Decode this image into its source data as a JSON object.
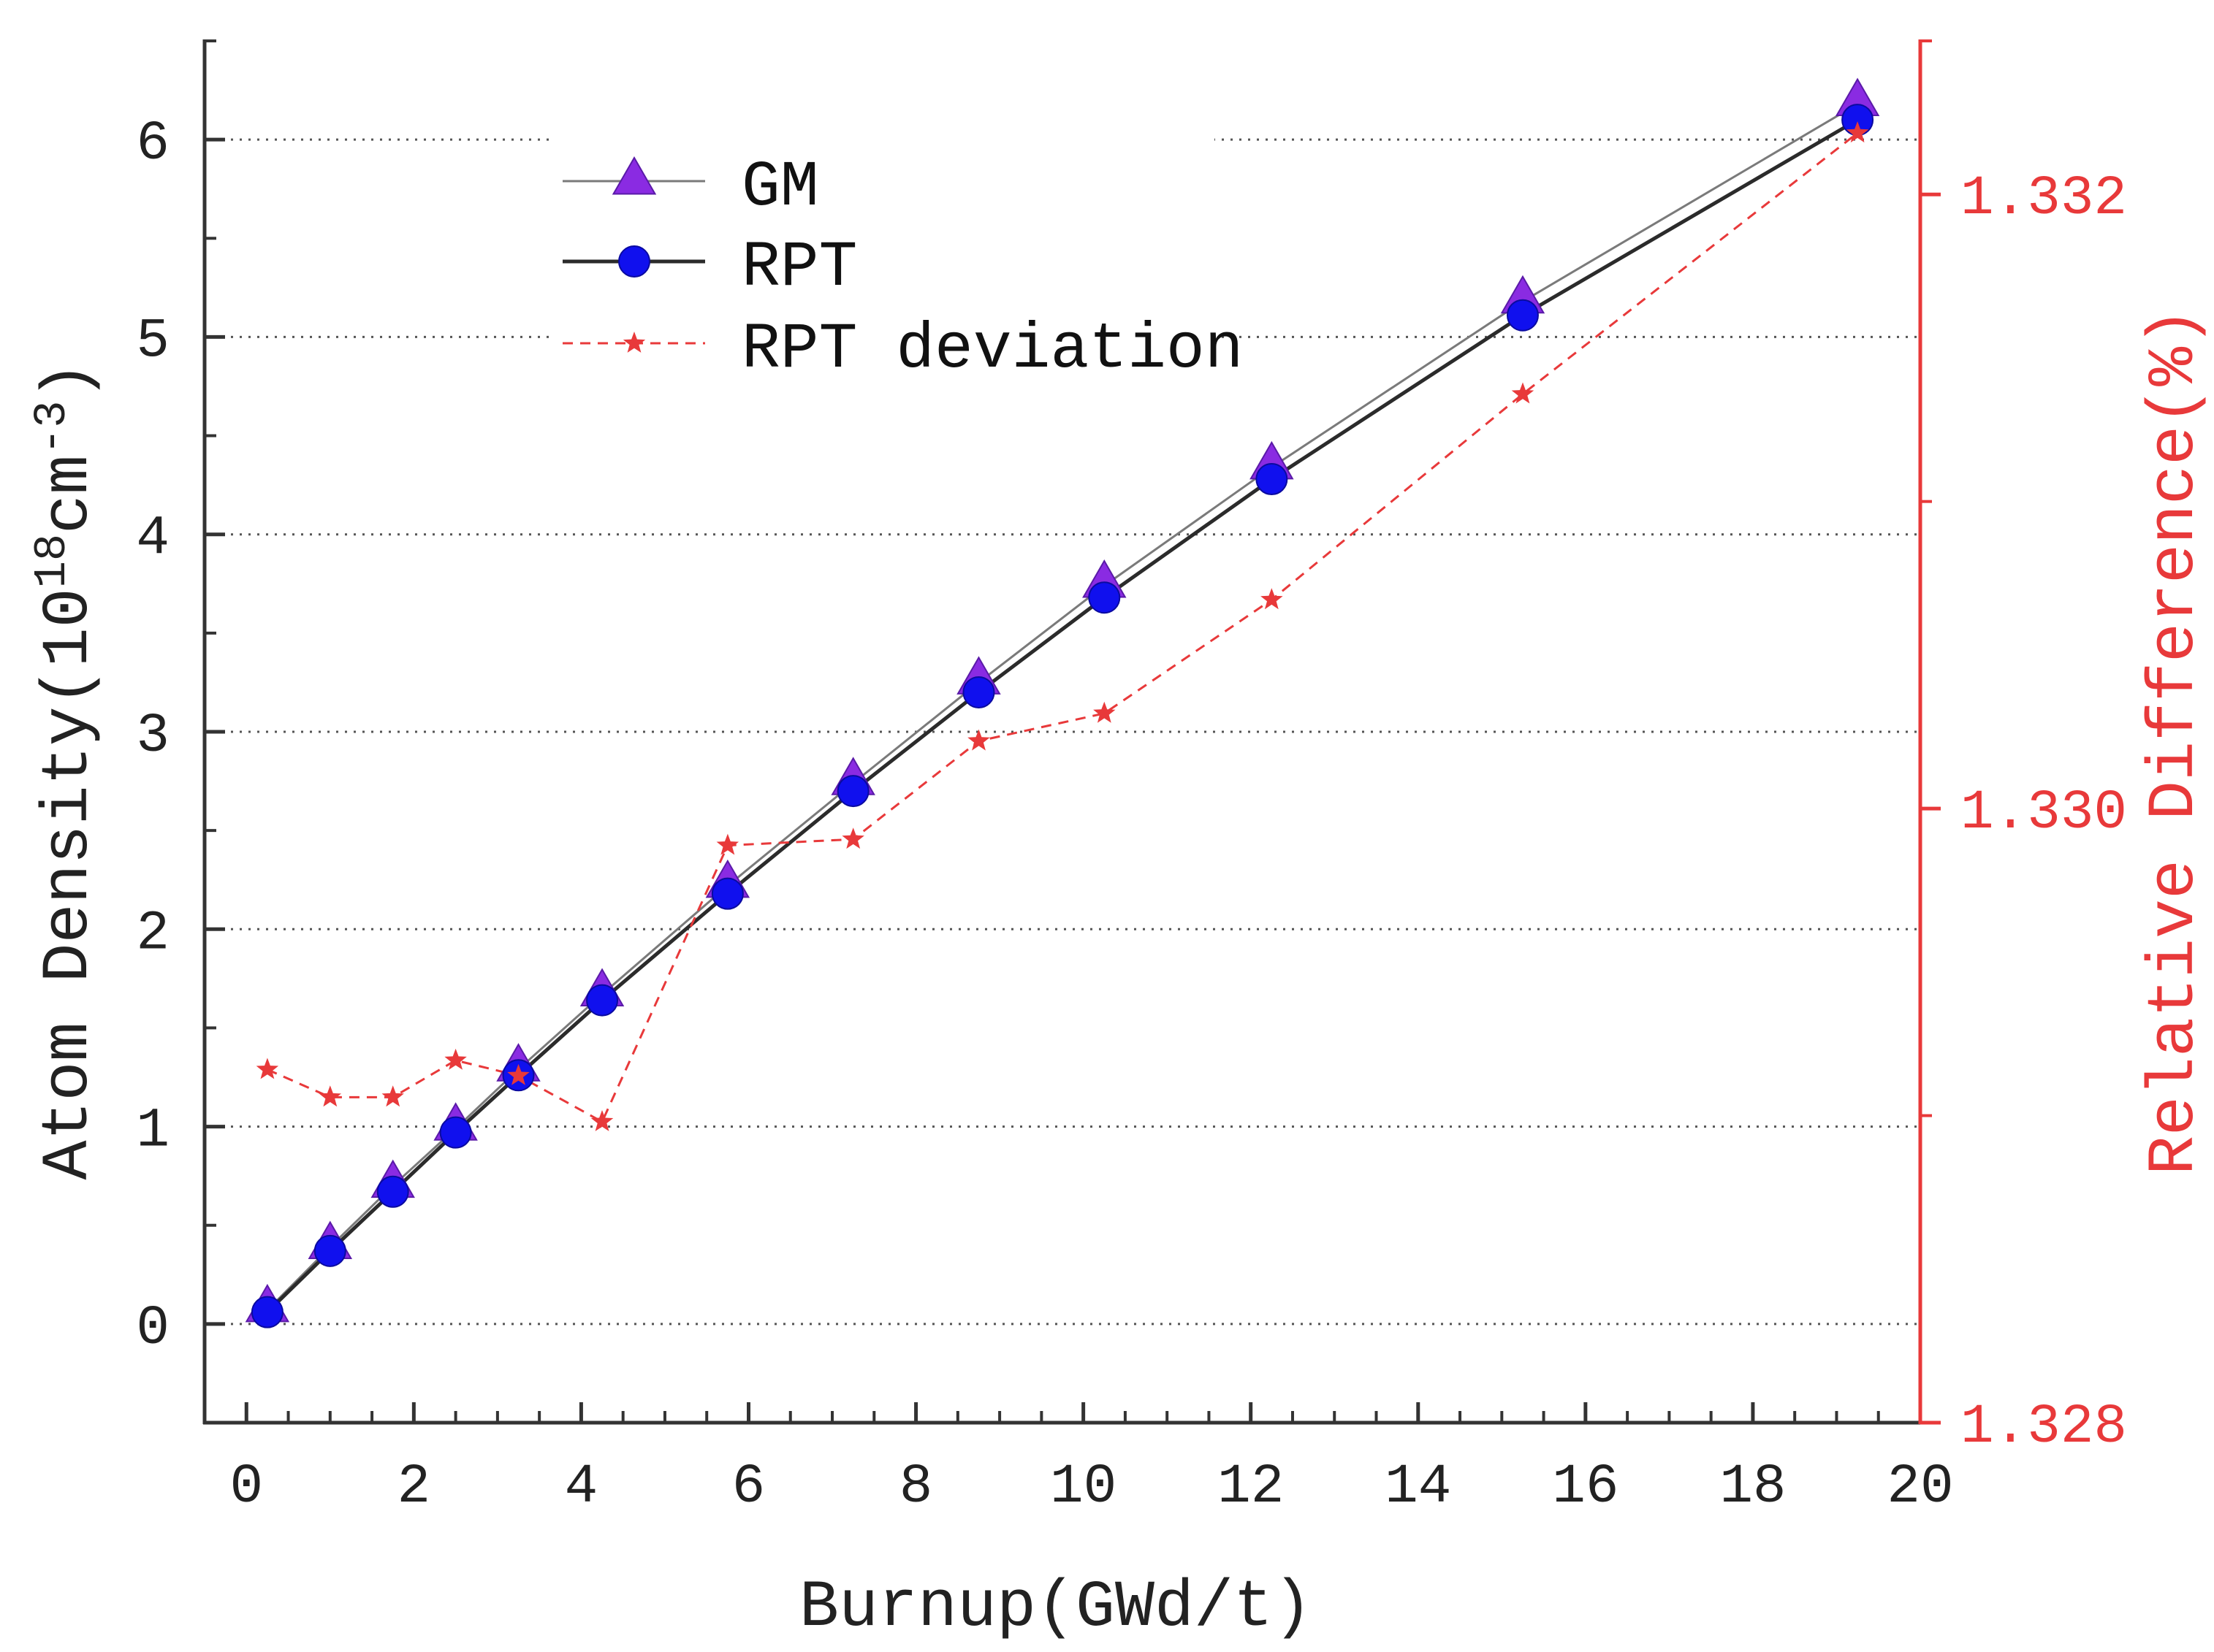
{
  "chart_data": {
    "type": "line",
    "title": "",
    "xlabel": "Burnup(GWd/t)",
    "ylabel": "Atom Density(10",
    "ylabel_exp1": "18",
    "ylabel_mid": "cm",
    "ylabel_exp2": "-3",
    "ylabel_end": ")",
    "y2label": "Relative Difference(%)",
    "xlim": [
      -0.5,
      20
    ],
    "ylim": [
      -0.5,
      6.5
    ],
    "y2lim": [
      1.328,
      1.3325
    ],
    "xticks": [
      "0",
      "2",
      "4",
      "6",
      "8",
      "10",
      "12",
      "14",
      "16",
      "18",
      "20"
    ],
    "yticks": [
      "0",
      "1",
      "2",
      "3",
      "4",
      "5",
      "6"
    ],
    "y2ticks": [
      "1.328",
      "1.330",
      "1.332"
    ],
    "grid": "horizontal dotted",
    "legend_position": "top-left",
    "x": [
      0.25,
      1.0,
      1.75,
      2.5,
      3.25,
      4.25,
      5.75,
      7.25,
      8.75,
      10.25,
      12.25,
      15.25,
      19.25
    ],
    "series": [
      {
        "name": "GM",
        "axis": "left",
        "marker": "triangle",
        "color": "#8a2be2",
        "values": [
          0.07,
          0.39,
          0.7,
          0.99,
          1.29,
          1.67,
          2.22,
          2.74,
          3.25,
          3.74,
          4.34,
          5.18,
          6.18
        ]
      },
      {
        "name": "RPT",
        "axis": "left",
        "marker": "circle",
        "color": "#1010ee",
        "values": [
          0.06,
          0.37,
          0.67,
          0.97,
          1.26,
          1.64,
          2.18,
          2.7,
          3.2,
          3.68,
          4.28,
          5.11,
          6.1
        ]
      },
      {
        "name": "RPT deviation",
        "axis": "right",
        "marker": "star",
        "color": "#e8393a",
        "values": [
          1.32915,
          1.32906,
          1.32906,
          1.32918,
          1.32913,
          1.32898,
          1.32988,
          1.3299,
          1.33022,
          1.33031,
          1.33068,
          1.33135,
          1.3322
        ]
      }
    ]
  }
}
